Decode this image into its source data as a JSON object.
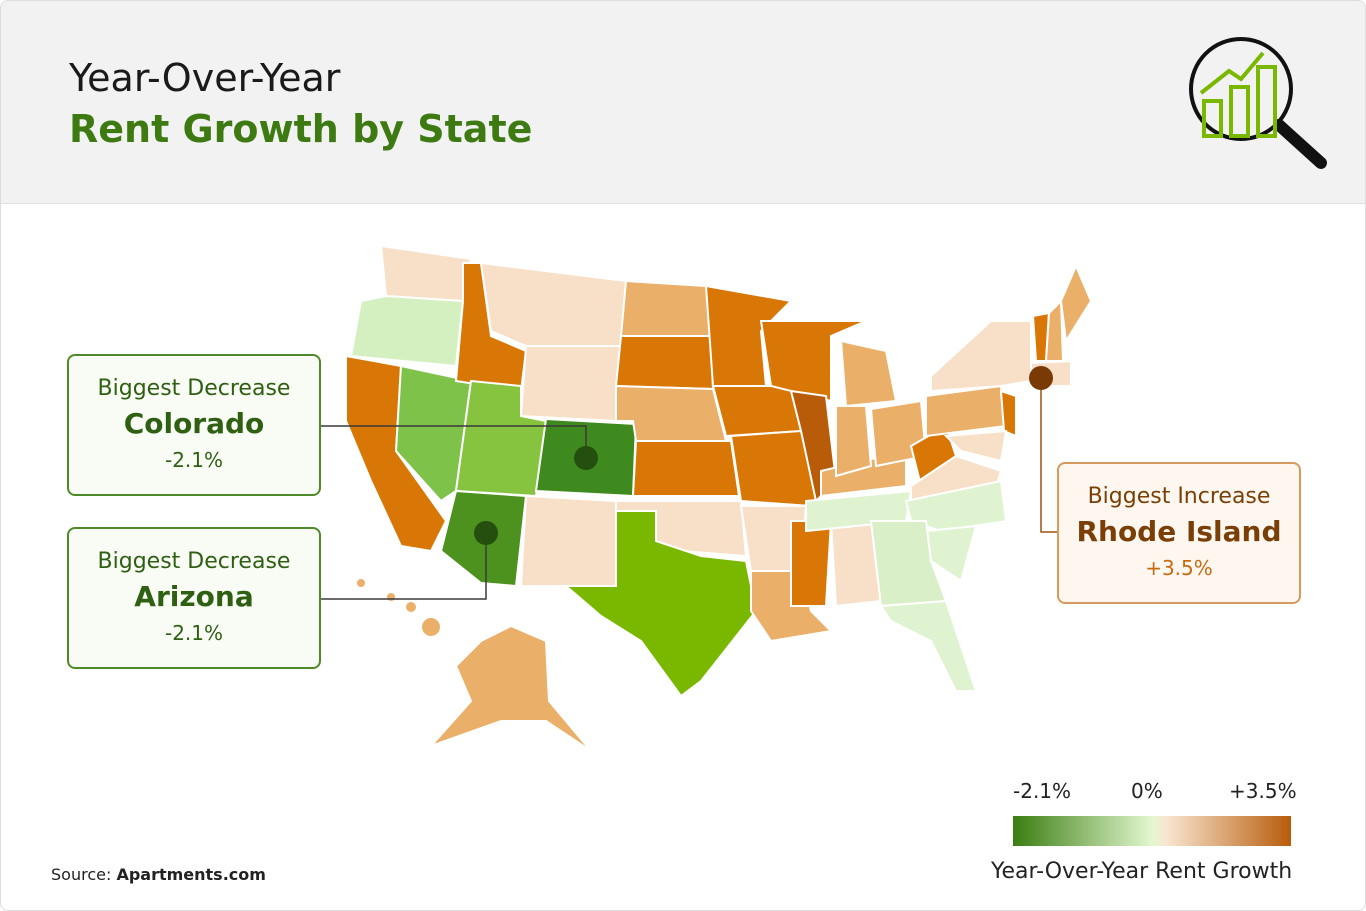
{
  "header": {
    "title_line1": "Year-Over-Year",
    "title_line2": "Rent Growth by State"
  },
  "callouts": [
    {
      "label": "Biggest Decrease",
      "state": "Colorado",
      "value": "-2.1%"
    },
    {
      "label": "Biggest Decrease",
      "state": "Arizona",
      "value": "-2.1%"
    },
    {
      "label": "Biggest Increase",
      "state": "Rhode Island",
      "value": "+3.5%"
    }
  ],
  "legend": {
    "labels": [
      "-2.1%",
      "0%",
      "+3.5%"
    ],
    "title": "Year-Over-Year Rent Growth"
  },
  "source": {
    "prefix": "Source:",
    "name": "Apartments.com"
  }
}
